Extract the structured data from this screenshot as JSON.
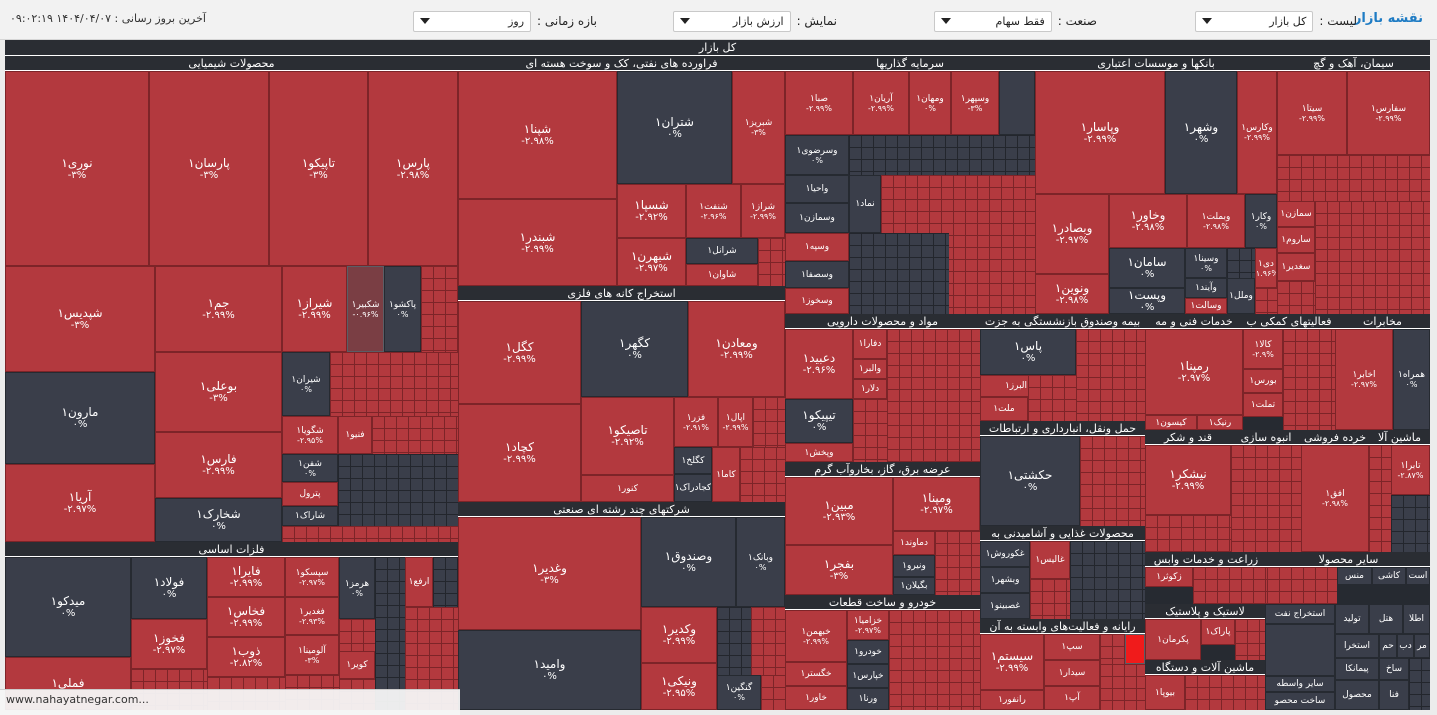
{
  "header": {
    "brand": "نقشه بازار",
    "last_update": "آخرین بروز رسانی : ۱۴۰۴/۰۴/۰۷ ۰۹:۰۲:۱۹",
    "list": {
      "label": "لیست :",
      "value": "کل بازار"
    },
    "industry": {
      "label": "صنعت :",
      "value": "فقط سهام"
    },
    "display": {
      "label": "نمایش :",
      "value": "ارزش بازار"
    },
    "period": {
      "label": "بازه زمانی :",
      "value": "روز"
    }
  },
  "map_title": "کل بازار",
  "footer_url": "www.nahayatnegar.com...",
  "colors": {
    "negative": "#b3393e",
    "neutral": "#3a3e4a",
    "strong_negative": "#f01b1b"
  },
  "sections": {
    "chemical": "محصولات شیمیایی",
    "oil": "فراورده های نفتی، کک و سوخت هسته ای",
    "invest": "سرمایه گذاریها",
    "banks": "بانکها و موسسات اعتباری",
    "cement": "سیمان، آهک و گچ",
    "metal_mining": "استخراج کانه های فلزی",
    "multi": "شرکتهای چند رشته ای صنعتی",
    "basic_metals": "فلزات اساسی",
    "pharma": "مواد و محصولات دارویی",
    "insurance": "بیمه وصندوق بازنشستگی به جزت",
    "tech_services": "خدمات فنی و مه",
    "aux": "فعالیتهای کمکی ب",
    "telecom": "مخابرات",
    "transport": "حمل ونقل، انبارداری و ارتباطات",
    "retail": "خرده فروشی",
    "machinery_top": "ماشین آلا",
    "construction": "انبوه سازی",
    "sugar": "قند و شکر",
    "power": "عرضه برق، گاز، بخاروآب گرم",
    "food": "محصولات غذایی و آشامیدنی به",
    "agri": "زراعت و خدمات وابس",
    "other_products": "سایر محصولا",
    "auto": "خودرو و ساخت قطعات",
    "rubber": "لاستیک و پلاستیک",
    "it": "رایانه و فعالیت‌های وابسته به آن",
    "machinery": "ماشین آلات و دستگاه"
  },
  "tiles": {
    "pars": {
      "name": "پارس۱",
      "value": "-۲.۹۸%"
    },
    "tapiko": {
      "name": "تاپیکو۱",
      "value": "-۳%"
    },
    "parsan": {
      "name": "پارسان۱",
      "value": "-۳%"
    },
    "nouri": {
      "name": "نوری۱",
      "value": "-۳%"
    },
    "shapdis": {
      "name": "شپدیس۱",
      "value": "-۳%"
    },
    "jam": {
      "name": "جم۱",
      "value": "-۲.۹۹%"
    },
    "shiraz": {
      "name": "شیراز۱",
      "value": "-۲.۹۹%"
    },
    "shekbir": {
      "name": "شکبیر۱",
      "value": "-۰.۹۶%"
    },
    "pakshou": {
      "name": "پاکشو۱",
      "value": "۰%"
    },
    "maroon": {
      "name": "مارون۱",
      "value": "۰%"
    },
    "bouali": {
      "name": "بوعلی۱",
      "value": "-۳%"
    },
    "shiran": {
      "name": "شیران۱",
      "value": "۰%"
    },
    "faras": {
      "name": "فارس۱",
      "value": "-۲.۹۹%"
    },
    "shgoya": {
      "name": "شگویا۱",
      "value": "-۲.۹۵%"
    },
    "faneya": {
      "name": "فنیو۱",
      "value": ""
    },
    "shafan": {
      "name": "شفن۱",
      "value": "۰%"
    },
    "aria": {
      "name": "آریا۱",
      "value": "-۲.۹۷%"
    },
    "shkharak": {
      "name": "شخارک۱",
      "value": "۰%"
    },
    "petrol": {
      "name": "پترول",
      "value": ""
    },
    "sharak": {
      "name": "شاراک۱",
      "value": ""
    },
    "shapna": {
      "name": "شپنا۱",
      "value": "-۲.۹۸%"
    },
    "shatran": {
      "name": "شتران۱",
      "value": "۰%"
    },
    "shbriz": {
      "name": "شبریز۱",
      "value": "-۳%"
    },
    "shabandar": {
      "name": "شبندر۱",
      "value": "-۲.۹۹%"
    },
    "shesepa": {
      "name": "شسپا۱",
      "value": "-۲.۹۲%"
    },
    "shenaft": {
      "name": "شنفت۱",
      "value": "-۲.۹۶%"
    },
    "shiraz2": {
      "name": "شراز۱",
      "value": "-۲.۹۹%"
    },
    "shranal": {
      "name": "شرانل۱",
      "value": ""
    },
    "shahran": {
      "name": "شبهرن۱",
      "value": "-۲.۹۷%"
    },
    "shavan": {
      "name": "شاوان۱",
      "value": ""
    },
    "kegol": {
      "name": "کگل۱",
      "value": "-۲.۹۹%"
    },
    "kegohar": {
      "name": "کگهر۱",
      "value": "۰%"
    },
    "vamaaden": {
      "name": "ومعادن۱",
      "value": "-۲.۹۹%"
    },
    "kechad": {
      "name": "کچاد۱",
      "value": "-۲.۹۹%"
    },
    "tasiko": {
      "name": "تاصیکو۱",
      "value": "-۲.۹۲%"
    },
    "fazar": {
      "name": "فزر۱",
      "value": "-۲.۹۱%"
    },
    "ahal": {
      "name": "اپال۱",
      "value": "-۲.۹۹%"
    },
    "kenor": {
      "name": "کنور۱",
      "value": ""
    },
    "kelakh": {
      "name": "کگلخ۱",
      "value": ""
    },
    "kejadrak": {
      "name": "کجادراک۱",
      "value": ""
    },
    "kamal": {
      "name": "کاما۱",
      "value": ""
    },
    "saba": {
      "name": "صبا۱",
      "value": "-۲.۹۹%"
    },
    "arian": {
      "name": "آریان۱",
      "value": "-۲.۹۹%"
    },
    "vamehan": {
      "name": "ومهان۱",
      "value": "۰%"
    },
    "vsepehr": {
      "name": "وسپهر۱",
      "value": "-۳%"
    },
    "vsarzavi": {
      "name": "وسرضوی۱",
      "value": "۰%"
    },
    "vahia": {
      "name": "واحیا۱",
      "value": ""
    },
    "vsamazan": {
      "name": "وسمازن۱",
      "value": ""
    },
    "vsepeh": {
      "name": "وسپه۱",
      "value": ""
    },
    "vsafa": {
      "name": "وسصفا۱",
      "value": ""
    },
    "vskhouz": {
      "name": "وسخوز۱",
      "value": ""
    },
    "nama": {
      "name": "نماد۱",
      "value": ""
    },
    "vpasar": {
      "name": "وپاسار۱",
      "value": "-۲.۹۹%"
    },
    "vshahr": {
      "name": "وشهر۱",
      "value": "۰%"
    },
    "vkaras": {
      "name": "وکارس۱",
      "value": "-۲.۹۹%"
    },
    "vbsader": {
      "name": "وبصادر۱",
      "value": "-۲.۹۷%"
    },
    "vkhavar": {
      "name": "وخاور۱",
      "value": "-۲.۹۸%"
    },
    "vbmelat": {
      "name": "وبملت۱",
      "value": "-۲.۹۸%"
    },
    "vkar": {
      "name": "وکار۱",
      "value": "۰%"
    },
    "saman": {
      "name": "سامان۱",
      "value": "۰%"
    },
    "vsina": {
      "name": "وسینا۱",
      "value": "۰%"
    },
    "day": {
      "name": "دی۱",
      "value": "-۱.۹۶%"
    },
    "vapaad": {
      "name": "وآیند۱",
      "value": ""
    },
    "vnovin": {
      "name": "ونوین۱",
      "value": "-۲.۹۸%"
    },
    "vpost": {
      "name": "وپست۱",
      "value": "۰%"
    },
    "vsalat": {
      "name": "وسالت۱",
      "value": ""
    },
    "vamel": {
      "name": "وملل۱",
      "value": ""
    },
    "sita": {
      "name": "سیتا۱",
      "value": "-۲.۹۹%"
    },
    "sfars": {
      "name": "سفارس۱",
      "value": "-۲.۹۹%"
    },
    "samazen": {
      "name": "سمازن۱",
      "value": ""
    },
    "sarom": {
      "name": "ساروم۱",
      "value": ""
    },
    "saghadir": {
      "name": "سغدیر۱",
      "value": ""
    },
    "vaghadir": {
      "name": "وغدیر۱",
      "value": "-۳%"
    },
    "vsandoogh": {
      "name": "وصندوق۱",
      "value": "۰%"
    },
    "vbank": {
      "name": "وبانک۱",
      "value": "۰%"
    },
    "vkadir": {
      "name": "وکدیر۱",
      "value": "-۲.۹۹%"
    },
    "vamid": {
      "name": "وامید۱",
      "value": "۰%"
    },
    "vnikie": {
      "name": "ونیکی۱",
      "value": "-۲.۹۵%"
    },
    "vgagin": {
      "name": "گنگین۱",
      "value": "۰%"
    },
    "medko": {
      "name": "میدکو۱",
      "value": "۰%"
    },
    "foolad": {
      "name": "فولاد۱",
      "value": "۰%"
    },
    "faira": {
      "name": "فایرا۱",
      "value": "-۲.۹۹%"
    },
    "sipasko": {
      "name": "سپسکو۱",
      "value": "-۲.۹۷%"
    },
    "hormoz": {
      "name": "هرمز۱",
      "value": "۰%"
    },
    "arfa": {
      "name": "ارفع۱",
      "value": ""
    },
    "fakhooz": {
      "name": "فخوز۱",
      "value": "-۲.۹۷%"
    },
    "fakhas": {
      "name": "فخاس۱",
      "value": "-۲.۹۹%"
    },
    "fesdir": {
      "name": "فغدیر۱",
      "value": "-۲.۹۳%"
    },
    "zob": {
      "name": "ذوب۱",
      "value": "-۲.۸۲%"
    },
    "aloumina": {
      "name": "آلومینا۱",
      "value": "-۳%"
    },
    "kobar": {
      "name": "کویر۱",
      "value": ""
    },
    "fameli": {
      "name": "فملی۱",
      "value": ""
    },
    "dabid": {
      "name": "دعبید۱",
      "value": "-۲.۹۶%"
    },
    "dfara": {
      "name": "دفارا۱",
      "value": ""
    },
    "valbr": {
      "name": "والبر۱",
      "value": ""
    },
    "dlara": {
      "name": "دلار۱",
      "value": ""
    },
    "tipiko": {
      "name": "تیپیکو۱",
      "value": "۰%"
    },
    "vpakhsh": {
      "name": "وپخش۱",
      "value": ""
    },
    "pas": {
      "name": "پاس۱",
      "value": "۰%"
    },
    "alborz": {
      "name": "البرز۱",
      "value": ""
    },
    "melat": {
      "name": "ملت۱",
      "value": ""
    },
    "rampna": {
      "name": "رمپنا۱",
      "value": "-۲.۹۷%"
    },
    "kisoon": {
      "name": "کیسون۱",
      "value": ""
    },
    "ranik": {
      "name": "رنیک۱",
      "value": ""
    },
    "kala": {
      "name": "کالا۱",
      "value": "-۲.۹%"
    },
    "bours": {
      "name": "بورس۱",
      "value": ""
    },
    "tamlat": {
      "name": "تملت۱",
      "value": ""
    },
    "akhaber": {
      "name": "اخابر۱",
      "value": "-۲.۹۷%"
    },
    "hamrah": {
      "name": "همراه۱",
      "value": "۰%"
    },
    "hakshi": {
      "name": "حکشتی۱",
      "value": "۰%"
    },
    "ofogh": {
      "name": "افق۱",
      "value": "-۲.۹۸%"
    },
    "tabra": {
      "name": "تابرا۱",
      "value": "-۲.۸۷%"
    },
    "nishakar": {
      "name": "نیشکر۱",
      "value": "-۲.۹۹%"
    },
    "mebin": {
      "name": "مبین۱",
      "value": "-۲.۹۳%"
    },
    "vmapna": {
      "name": "ومپنا۱",
      "value": "-۲.۹۷%"
    },
    "bfajr": {
      "name": "بفجر۱",
      "value": "-۳%"
    },
    "damavand": {
      "name": "دماوند۱",
      "value": ""
    },
    "vniroo": {
      "name": "ونیرو۱",
      "value": ""
    },
    "bgilan": {
      "name": "بگیلان۱",
      "value": ""
    },
    "ghakoorosh": {
      "name": "غکوروش۱",
      "value": ""
    },
    "vbshahr": {
      "name": "وبشهر۱",
      "value": ""
    },
    "ghasbino": {
      "name": "غصبینو۱",
      "value": ""
    },
    "ghalis": {
      "name": "غالیس۱",
      "value": ""
    },
    "zakotr": {
      "name": "زکوثر۱",
      "value": ""
    },
    "khahmn": {
      "name": "خبهمن۱",
      "value": "-۲.۹۹%"
    },
    "khazamia": {
      "name": "خزامیا۱",
      "value": "-۲.۹۷%"
    },
    "khgostar": {
      "name": "خگستر۱",
      "value": ""
    },
    "khodro": {
      "name": "خودرو۱",
      "value": ""
    },
    "khavar": {
      "name": "خاور۱",
      "value": ""
    },
    "kharis": {
      "name": "خپارس۱",
      "value": ""
    },
    "vrna": {
      "name": "ورنا۱",
      "value": ""
    },
    "pakran": {
      "name": "پکرمان۱",
      "value": ""
    },
    "parak": {
      "name": "پاراک۱",
      "value": ""
    },
    "estekhraj": {
      "name": "استخراج نفت",
      "value": ""
    },
    "sayer_vaseteh": {
      "name": "سایر واسطه",
      "value": ""
    },
    "sakht_mahsool": {
      "name": "ساخت محصو",
      "value": ""
    },
    "sistem": {
      "name": "سیستم۱",
      "value": "-۲.۹۹%"
    },
    "sap": {
      "name": "سپ۱",
      "value": ""
    },
    "sidar": {
      "name": "سیدار۱",
      "value": ""
    },
    "ap": {
      "name": "آپ۱",
      "value": ""
    },
    "rankour": {
      "name": "رانفور۱",
      "value": ""
    },
    "boya": {
      "name": "بیوپا۱",
      "value": ""
    },
    "mons": {
      "name": "منس",
      "value": ""
    },
    "kashi": {
      "name": "کاشی",
      "value": ""
    },
    "ast": {
      "name": "است",
      "value": ""
    },
    "atla": {
      "name": "اطلا",
      "value": ""
    },
    "hotel": {
      "name": "هتل",
      "value": ""
    },
    "toolid": {
      "name": "تولید",
      "value": ""
    },
    "estekhra2": {
      "name": "استخرا",
      "value": ""
    },
    "ham": {
      "name": "حم",
      "value": ""
    },
    "dab": {
      "name": "دب",
      "value": ""
    },
    "mr": {
      "name": "مر",
      "value": ""
    },
    "pimanka": {
      "name": "پیمانکا",
      "value": ""
    },
    "sakh": {
      "name": "ساخ",
      "value": ""
    },
    "mahsool": {
      "name": "محصول",
      "value": ""
    },
    "fani": {
      "name": "فنا",
      "value": ""
    },
    "ganj": {
      "name": "ماشین آلا",
      "value": ""
    }
  }
}
